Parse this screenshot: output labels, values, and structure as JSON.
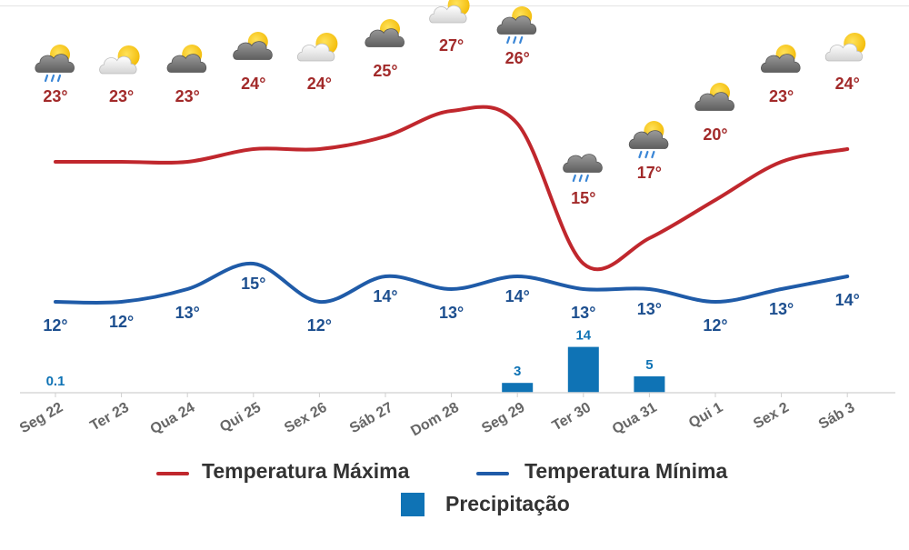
{
  "chart_data": {
    "type": "line",
    "categories": [
      "Seg 22",
      "Ter 23",
      "Qua 24",
      "Qui 25",
      "Sex 26",
      "Sáb 27",
      "Dom 28",
      "Seg 29",
      "Ter 30",
      "Qua 31",
      "Qui 1",
      "Sex 2",
      "Sáb 3"
    ],
    "series": [
      {
        "name": "Temperatura Máxima",
        "type": "line",
        "values": [
          23,
          23,
          23,
          24,
          24,
          25,
          27,
          26,
          15,
          17,
          20,
          23,
          24
        ]
      },
      {
        "name": "Temperatura Mínima",
        "type": "line",
        "values": [
          12,
          12,
          13,
          15,
          12,
          14,
          13,
          14,
          13,
          13,
          12,
          13,
          14
        ]
      },
      {
        "name": "Precipitação",
        "type": "bar",
        "values": [
          0.1,
          0,
          0,
          0,
          0,
          0,
          0,
          3,
          14,
          5,
          0,
          0,
          0
        ]
      }
    ],
    "max_labels": [
      "23°",
      "23°",
      "23°",
      "24°",
      "24°",
      "25°",
      "27°",
      "26°",
      "15°",
      "17°",
      "20°",
      "23°",
      "24°"
    ],
    "min_labels": [
      "12°",
      "12°",
      "13°",
      "15°",
      "12°",
      "14°",
      "13°",
      "14°",
      "13°",
      "13°",
      "12°",
      "13°",
      "14°"
    ],
    "precip_labels": [
      "0.1",
      "",
      "",
      "",
      "",
      "",
      "",
      "3",
      "14",
      "5",
      "",
      "",
      ""
    ],
    "weather_icons": [
      "cloud-sun-rain-icon",
      "sun-cloud-icon",
      "cloud-sun-icon",
      "cloud-sun-icon",
      "sun-cloud-icon",
      "cloud-sun-icon",
      "sun-cloud-icon",
      "cloud-sun-rain-icon",
      "cloud-rain-icon",
      "cloud-sun-rain-icon",
      "cloud-sun-icon",
      "cloud-sun-icon",
      "sun-cloud-icon"
    ],
    "colors": {
      "max": "#c0272d",
      "min": "#1f5ba8",
      "precip": "#0f73b5",
      "max_label": "#a22a2a",
      "min_label": "#1d4f8f",
      "tick": "#666666"
    },
    "legend": {
      "max": "Temperatura Máxima",
      "min": "Temperatura Mínima",
      "precip": "Precipitação"
    }
  }
}
